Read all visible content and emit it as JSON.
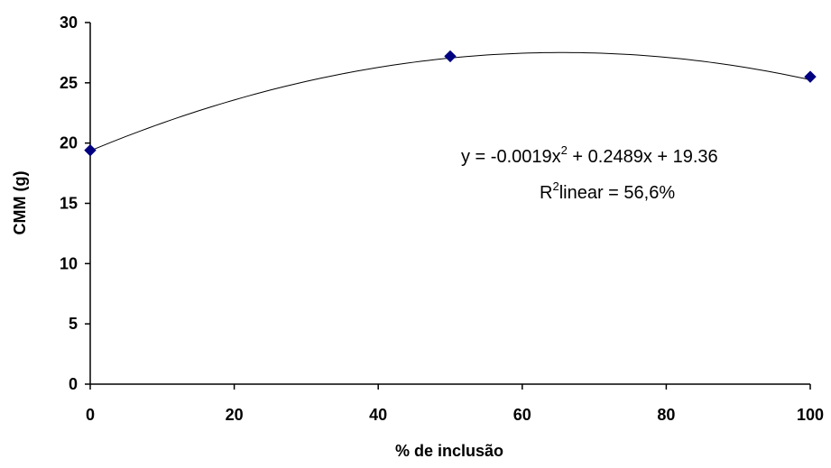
{
  "chart_data": {
    "type": "scatter",
    "xlabel": "% de inclusão",
    "ylabel": "CMM (g)",
    "xlim": [
      0,
      100
    ],
    "ylim": [
      0,
      30
    ],
    "x_ticks": [
      "0",
      "20",
      "40",
      "60",
      "80",
      "100"
    ],
    "y_ticks": [
      "0",
      "5",
      "10",
      "15",
      "20",
      "25",
      "30"
    ],
    "grid": false,
    "points": [
      {
        "x": 0,
        "y": 19.4
      },
      {
        "x": 50,
        "y": 27.2
      },
      {
        "x": 100,
        "y": 25.5
      }
    ],
    "trendline": {
      "type": "polynomial",
      "coefficients": {
        "a": -0.0019,
        "b": 0.2489,
        "c": 19.36
      }
    },
    "annotation": {
      "equation_prefix": "y = -0.0019x",
      "equation_exp": "2",
      "equation_suffix": " + 0.2489x + 19.36",
      "r2_prefix": "R",
      "r2_exp": "2",
      "r2_suffix": "linear = 56,6%"
    },
    "colors": {
      "marker": "#000080",
      "line": "#000000",
      "axis": "#000000"
    }
  }
}
